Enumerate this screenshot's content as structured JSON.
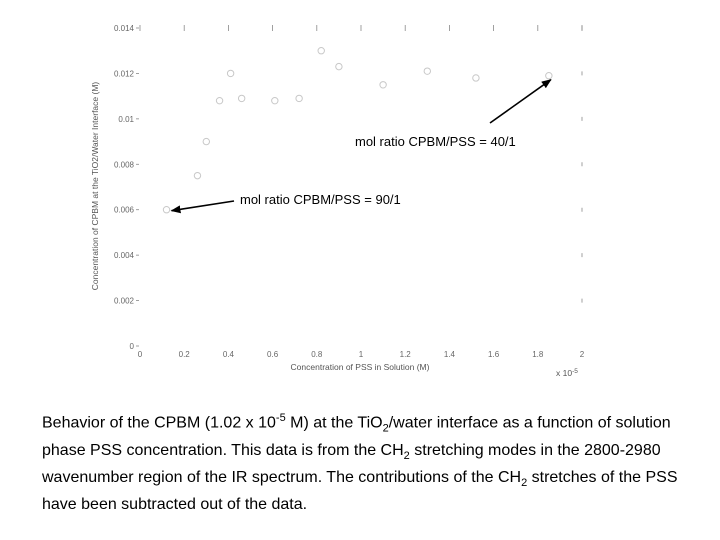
{
  "chart_data": {
    "type": "scatter",
    "title": "",
    "xlabel": "Concentration of PSS in Solution (M)",
    "ylabel": "Concentration of CPBM at the TiO2/Water Interface (M)",
    "x_multiplier_label": "x 10",
    "x_multiplier_exp": "-5",
    "xlim": [
      0,
      2
    ],
    "ylim": [
      0,
      0.014
    ],
    "xticks": [
      "0",
      "0.2",
      "0.4",
      "0.6",
      "0.8",
      "1",
      "1.2",
      "1.4",
      "1.6",
      "1.8",
      "2"
    ],
    "yticks": [
      "0",
      "0.002",
      "0.004",
      "0.006",
      "0.008",
      "0.01",
      "0.012",
      "0.014"
    ],
    "grid": false,
    "marker_color": "#c8c8c8",
    "series": [
      {
        "x": [
          0.12,
          0.26,
          0.3,
          0.36,
          0.41,
          0.46,
          0.61,
          0.72,
          0.82,
          0.9,
          1.1,
          1.3,
          1.52,
          1.85
        ],
        "y": [
          0.006,
          0.0075,
          0.009,
          0.0108,
          0.012,
          0.0109,
          0.0108,
          0.0109,
          0.013,
          0.0123,
          0.0115,
          0.0121,
          0.0118,
          0.0119
        ]
      }
    ],
    "annotations": [
      {
        "text": "mol ratio CPBM/PSS = 40/1",
        "x": 1.85,
        "y": 0.0119
      },
      {
        "text": "mol ratio CPBM/PSS = 90/1",
        "x": 0.12,
        "y": 0.006
      }
    ]
  },
  "caption": {
    "p1": "Behavior of the CPBM (1.02 x 10",
    "s1": "-5",
    "p2": " M) at the Ti",
    "p3": "O",
    "s2": "2",
    "p4": "/water interface as a function of solution phase PSS concentration.  This data is from the CH",
    "s3": "2",
    "p5": " stretching modes in the 2800-2980 wavenumber region of the IR spectrum.  The contributions of the CH",
    "s4": "2",
    "p6": " stretches of the PSS have been subtracted out of the data."
  }
}
